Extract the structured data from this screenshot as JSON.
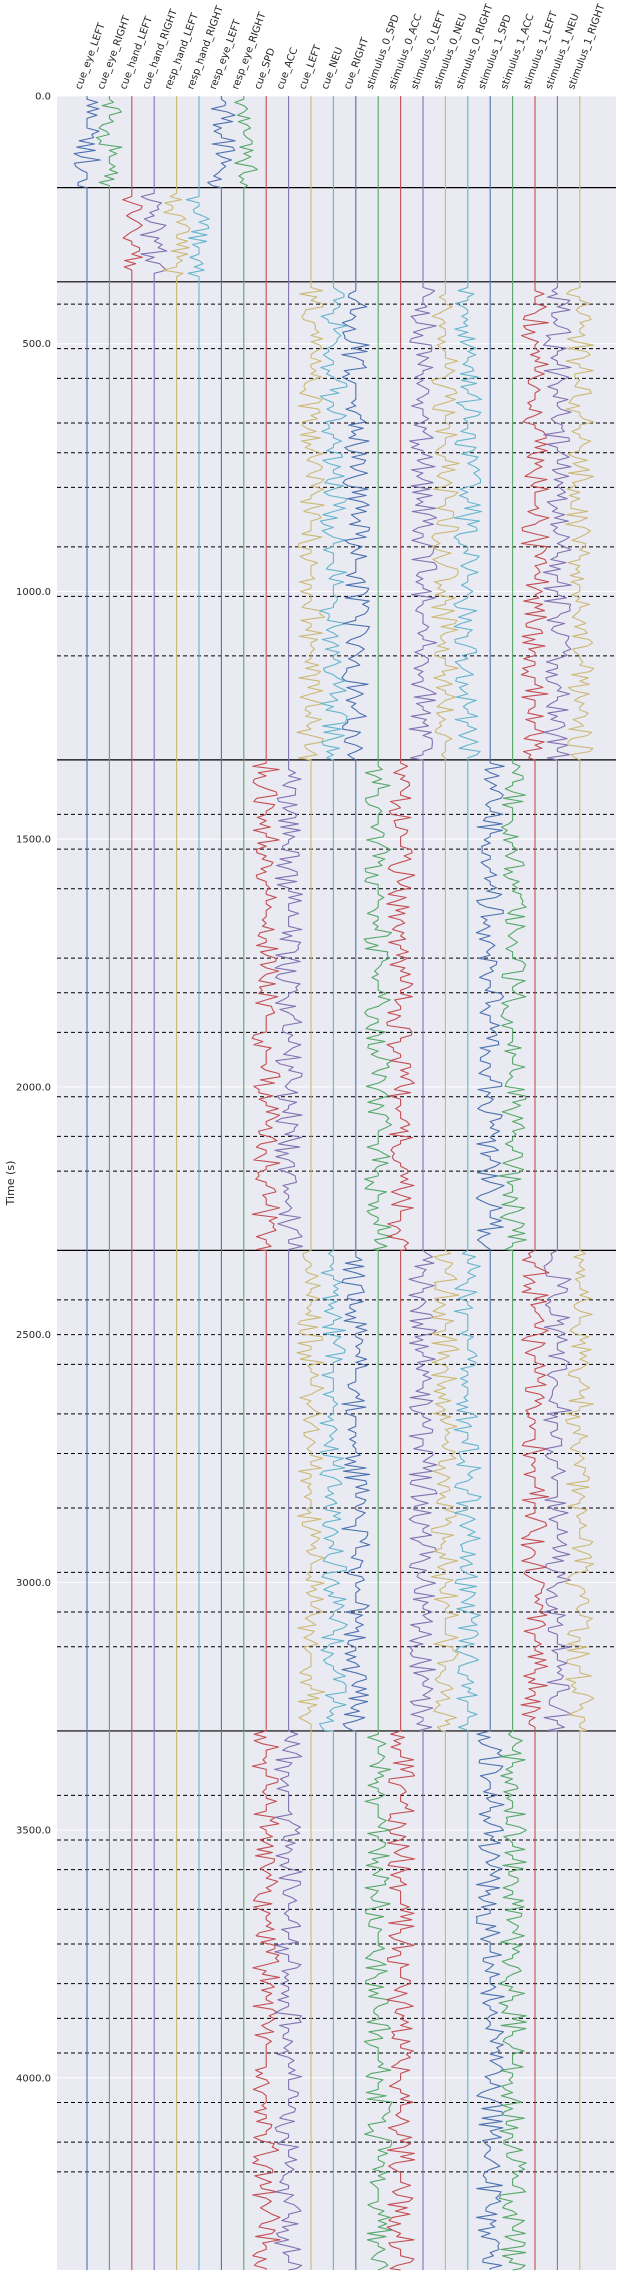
{
  "chart_data": {
    "type": "line",
    "title": "",
    "xlabel": "",
    "ylabel": "Time (s)",
    "ylim": [
      0,
      4388
    ],
    "yticks": [
      0.0,
      500.0,
      1000.0,
      1500.0,
      2000.0,
      2500.0,
      3000.0,
      3500.0,
      4000.0
    ],
    "ytick_labels": [
      "0.0",
      "500.0",
      "1000.0",
      "1500.0",
      "2000.0",
      "2500.0",
      "3000.0",
      "3500.0",
      "4000.0"
    ],
    "grid": true,
    "background": "#eaeaf2",
    "channels": [
      {
        "name": "cue_eye_LEFT",
        "color": "#4c72b0"
      },
      {
        "name": "cue_eye_RIGHT",
        "color": "#55a868"
      },
      {
        "name": "cue_hand_LEFT",
        "color": "#c44e52"
      },
      {
        "name": "cue_hand_RIGHT",
        "color": "#8172b2"
      },
      {
        "name": "resp_hand_LEFT",
        "color": "#ccb974"
      },
      {
        "name": "resp_hand_RIGHT",
        "color": "#64b5cd"
      },
      {
        "name": "resp_eye_LEFT",
        "color": "#4c72b0"
      },
      {
        "name": "resp_eye_RIGHT",
        "color": "#55a868"
      },
      {
        "name": "cue_SPD",
        "color": "#c44e52"
      },
      {
        "name": "cue_ACC",
        "color": "#8172b2"
      },
      {
        "name": "cue_LEFT",
        "color": "#ccb974"
      },
      {
        "name": "cue_NEU",
        "color": "#64b5cd"
      },
      {
        "name": "cue_RIGHT",
        "color": "#4c72b0"
      },
      {
        "name": "stimulus_0_SPD",
        "color": "#55a868"
      },
      {
        "name": "stimulus_0_ACC",
        "color": "#c44e52"
      },
      {
        "name": "stimulus_0_LEFT",
        "color": "#8172b2"
      },
      {
        "name": "stimulus_0_NEU",
        "color": "#ccb974"
      },
      {
        "name": "stimulus_0_RIGHT",
        "color": "#64b5cd"
      },
      {
        "name": "stimulus_1_SPD",
        "color": "#4c72b0"
      },
      {
        "name": "stimulus_1_ACC",
        "color": "#55a868"
      },
      {
        "name": "stimulus_1_LEFT",
        "color": "#c44e52"
      },
      {
        "name": "stimulus_1_NEU",
        "color": "#8172b2"
      },
      {
        "name": "stimulus_1_RIGHT",
        "color": "#ccb974"
      }
    ],
    "active_segments": [
      {
        "channel": "cue_eye_LEFT",
        "start": 0,
        "end": 185
      },
      {
        "channel": "cue_eye_RIGHT",
        "start": 0,
        "end": 185
      },
      {
        "channel": "resp_eye_LEFT",
        "start": 0,
        "end": 185
      },
      {
        "channel": "resp_eye_RIGHT",
        "start": 0,
        "end": 185
      },
      {
        "channel": "cue_hand_LEFT",
        "start": 190,
        "end": 370
      },
      {
        "channel": "cue_hand_RIGHT",
        "start": 190,
        "end": 370
      },
      {
        "channel": "resp_hand_LEFT",
        "start": 190,
        "end": 370
      },
      {
        "channel": "resp_hand_RIGHT",
        "start": 190,
        "end": 370
      },
      {
        "channel": "cue_LEFT",
        "start": 380,
        "end": 1340
      },
      {
        "channel": "cue_NEU",
        "start": 380,
        "end": 1340
      },
      {
        "channel": "cue_RIGHT",
        "start": 380,
        "end": 1340
      },
      {
        "channel": "stimulus_0_LEFT",
        "start": 380,
        "end": 1340
      },
      {
        "channel": "stimulus_0_NEU",
        "start": 380,
        "end": 1340
      },
      {
        "channel": "stimulus_0_RIGHT",
        "start": 380,
        "end": 1340
      },
      {
        "channel": "stimulus_1_LEFT",
        "start": 380,
        "end": 1340
      },
      {
        "channel": "stimulus_1_NEU",
        "start": 380,
        "end": 1340
      },
      {
        "channel": "stimulus_1_RIGHT",
        "start": 380,
        "end": 1340
      },
      {
        "channel": "cue_SPD",
        "start": 1340,
        "end": 2330
      },
      {
        "channel": "cue_ACC",
        "start": 1340,
        "end": 2330
      },
      {
        "channel": "stimulus_0_SPD",
        "start": 1340,
        "end": 2330
      },
      {
        "channel": "stimulus_0_ACC",
        "start": 1340,
        "end": 2330
      },
      {
        "channel": "stimulus_1_SPD",
        "start": 1340,
        "end": 2330
      },
      {
        "channel": "stimulus_1_ACC",
        "start": 1340,
        "end": 2330
      },
      {
        "channel": "cue_LEFT",
        "start": 2330,
        "end": 3300
      },
      {
        "channel": "cue_NEU",
        "start": 2330,
        "end": 3300
      },
      {
        "channel": "cue_RIGHT",
        "start": 2330,
        "end": 3300
      },
      {
        "channel": "stimulus_0_LEFT",
        "start": 2330,
        "end": 3300
      },
      {
        "channel": "stimulus_0_NEU",
        "start": 2330,
        "end": 3300
      },
      {
        "channel": "stimulus_0_RIGHT",
        "start": 2330,
        "end": 3300
      },
      {
        "channel": "stimulus_1_LEFT",
        "start": 2330,
        "end": 3300
      },
      {
        "channel": "stimulus_1_NEU",
        "start": 2330,
        "end": 3300
      },
      {
        "channel": "stimulus_1_RIGHT",
        "start": 2330,
        "end": 3300
      },
      {
        "channel": "cue_SPD",
        "start": 3300,
        "end": 4388
      },
      {
        "channel": "cue_ACC",
        "start": 3300,
        "end": 4388
      },
      {
        "channel": "stimulus_0_SPD",
        "start": 3300,
        "end": 4388
      },
      {
        "channel": "stimulus_0_ACC",
        "start": 3300,
        "end": 4388
      },
      {
        "channel": "stimulus_1_SPD",
        "start": 3300,
        "end": 4388
      },
      {
        "channel": "stimulus_1_ACC",
        "start": 3300,
        "end": 4388
      }
    ],
    "block_boundaries": [
      185,
      375,
      1340,
      2330,
      3300
    ],
    "trial_boundaries": [
      420,
      510,
      570,
      660,
      720,
      790,
      910,
      1010,
      1130,
      1450,
      1520,
      1600,
      1740,
      1810,
      1890,
      2020,
      2100,
      2170,
      2430,
      2500,
      2560,
      2660,
      2740,
      2850,
      2980,
      3060,
      3130,
      3430,
      3520,
      3580,
      3660,
      3730,
      3810,
      3880,
      3950,
      4050,
      4130,
      4190
    ]
  }
}
